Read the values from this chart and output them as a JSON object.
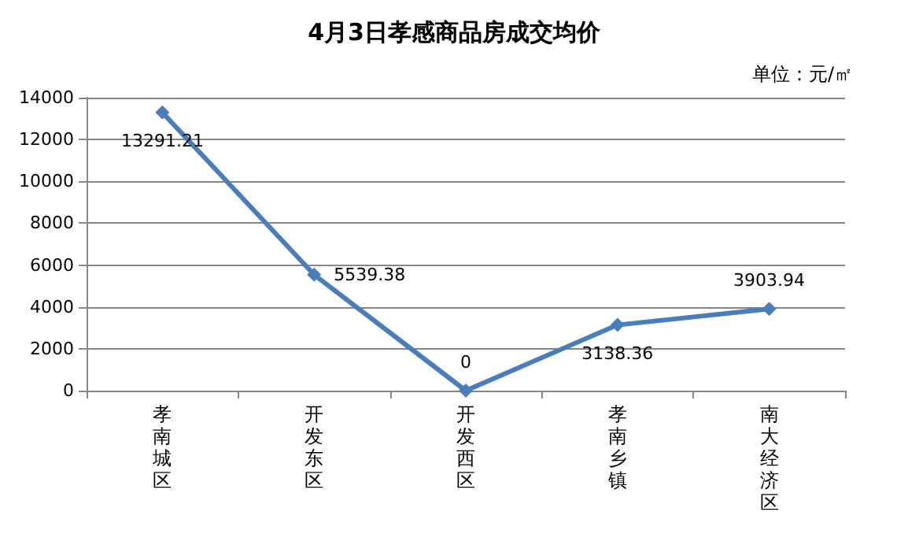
{
  "chart_data": {
    "type": "line",
    "title": "4月3日孝感商品房成交均价",
    "subtitle": "单位：元/㎡",
    "categories": [
      "孝南城区",
      "开发东区",
      "开发西区",
      "孝南乡镇",
      "南大经济区"
    ],
    "series": [
      {
        "color": "#4a7ebb",
        "values": [
          13291.21,
          5539.38,
          0,
          3138.36,
          3903.94
        ]
      }
    ],
    "ylim": [
      0,
      14000
    ],
    "yticks": [
      0,
      2000,
      4000,
      6000,
      8000,
      10000,
      12000,
      14000
    ],
    "grid": "y",
    "marker": "diamond",
    "line_style": "solid",
    "data_labels": true
  }
}
